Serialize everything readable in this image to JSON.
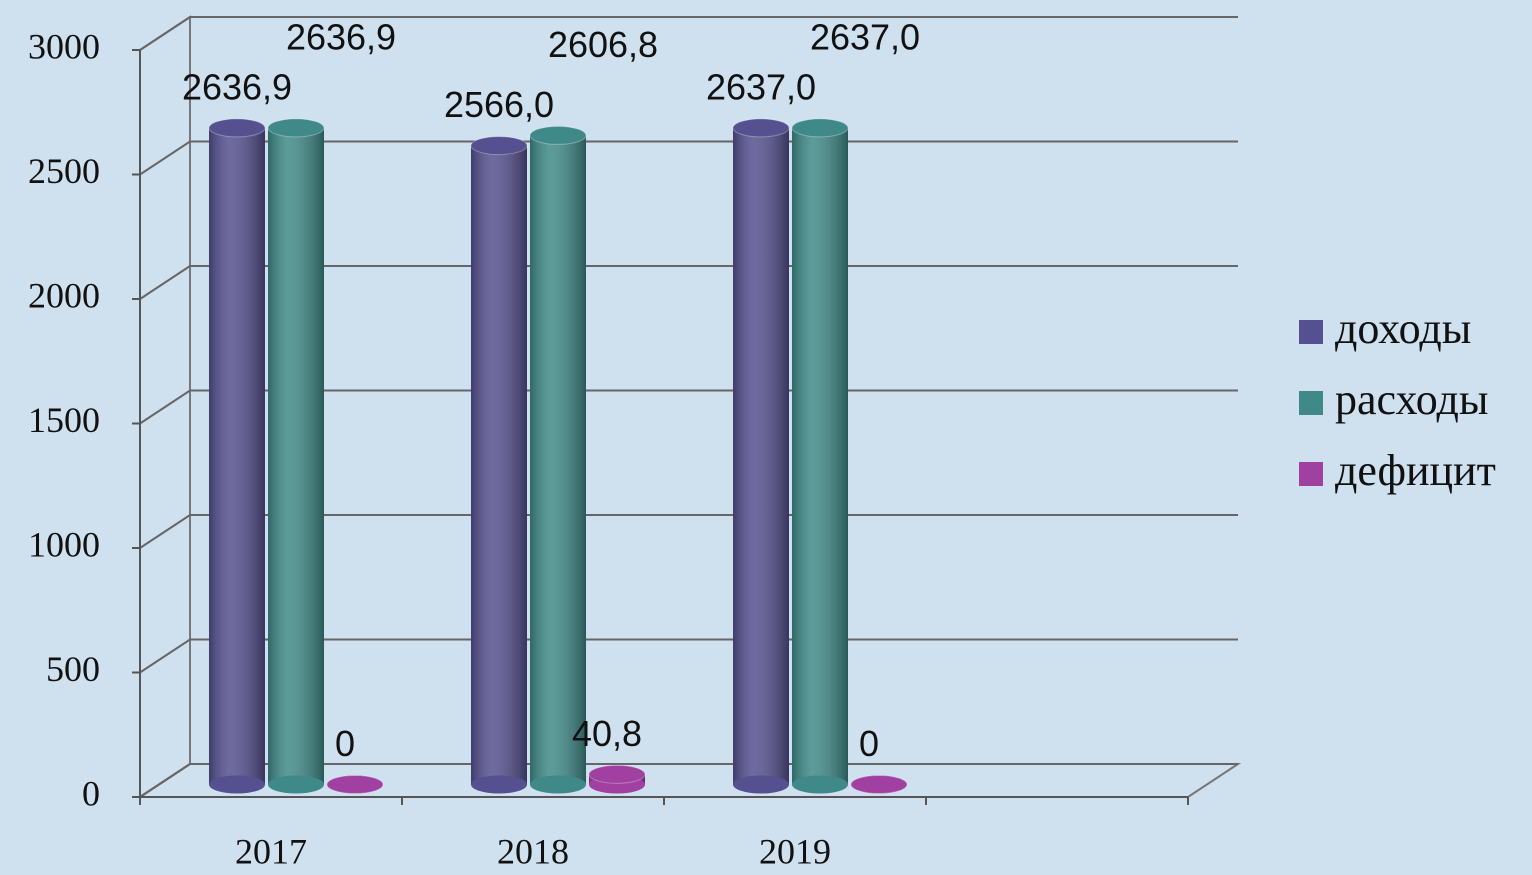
{
  "chart_data": {
    "type": "bar3d",
    "categories": [
      "2017",
      "2018",
      "2019",
      null
    ],
    "series": [
      {
        "name": "доходы",
        "color": "#55508f",
        "values": [
          2636.9,
          2566.0,
          2637.0,
          null
        ],
        "value_labels": [
          "2636,9",
          "2566,0",
          "2637,0",
          null
        ]
      },
      {
        "name": "расходы",
        "color": "#3f8a88",
        "values": [
          2636.9,
          2606.8,
          2637.0,
          null
        ],
        "value_labels": [
          "2636,9",
          "2606,8",
          "2637,0",
          null
        ]
      },
      {
        "name": "дефицит",
        "color": "#a040a0",
        "values": [
          0,
          40.8,
          0,
          null
        ],
        "value_labels": [
          "0",
          "40,8",
          "0",
          null
        ]
      }
    ],
    "ylim": [
      0,
      3000
    ],
    "yticks": [
      0,
      500,
      1000,
      1500,
      2000,
      2500,
      3000
    ],
    "grid": true,
    "legend": "right"
  }
}
